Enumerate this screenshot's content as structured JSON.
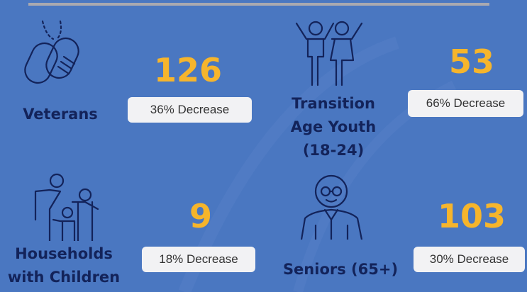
{
  "items": [
    {
      "label": [
        "Veterans"
      ],
      "count": "126",
      "change": "36% Decrease"
    },
    {
      "label": [
        "Transition",
        "Age Youth",
        "(18-24)"
      ],
      "count": "53",
      "change": "66% Decrease"
    },
    {
      "label": [
        "Households",
        "with Children"
      ],
      "count": "9",
      "change": "18% Decrease"
    },
    {
      "label": [
        "Seniors (65+)"
      ],
      "count": "103",
      "change": "30% Decrease"
    }
  ]
}
